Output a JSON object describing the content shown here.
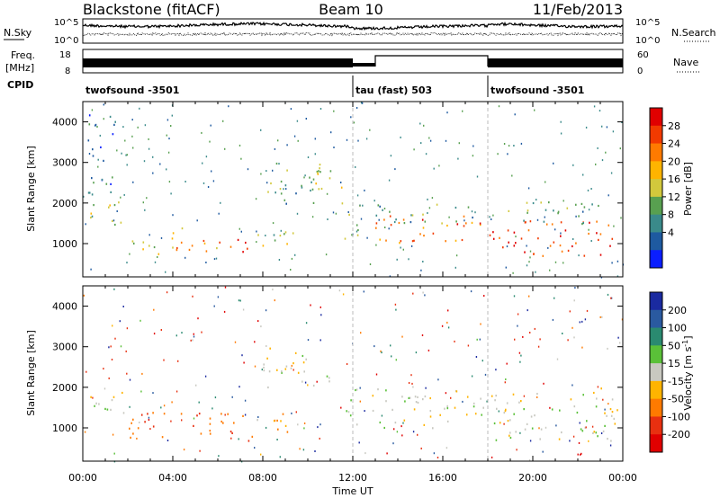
{
  "header": {
    "radar": "Blackstone (fitACF)",
    "beam": "Beam 10",
    "date": "11/Feb/2013"
  },
  "panels": {
    "nsky_label": "N.Sky",
    "nsearch_label": "N.Search",
    "freq_label_line1": "Freq.",
    "freq_label_line2": "[MHz]",
    "nave_label": "Nave",
    "cpid_label": "CPID",
    "noise_ticks_left": [
      "10^5",
      "10^0"
    ],
    "noise_ticks_right": [
      "10^5",
      "10^0"
    ],
    "freq_ticks": [
      "18",
      "8"
    ],
    "nave_ticks": [
      "60",
      "0"
    ],
    "cpid_segments": [
      {
        "label": "twofsound -3501",
        "start_hour": 0,
        "end_hour": 12
      },
      {
        "label": "tau (fast) 503",
        "start_hour": 12,
        "end_hour": 18
      },
      {
        "label": "twofsound -3501",
        "start_hour": 18,
        "end_hour": 24
      }
    ]
  },
  "power_colorbar": {
    "label": "Power [dB]",
    "ticks": [
      "28",
      "24",
      "20",
      "16",
      "12",
      "8",
      "4"
    ],
    "colors": [
      "#e00000",
      "#f23a00",
      "#ff7a00",
      "#ffb400",
      "#d2c83c",
      "#58a050",
      "#3a8a8a",
      "#1e5aa0",
      "#0a1eff"
    ]
  },
  "velocity_colorbar": {
    "label": "Velocity [m s-1]",
    "label_main": "Velocity [m s",
    "label_exp": "-1",
    "label_close": "]",
    "ticks": [
      "200",
      "100",
      "50",
      "15",
      "-15",
      "-50",
      "-100",
      "-200"
    ],
    "colors": [
      "#1a2aa0",
      "#2a5aa0",
      "#2a8a70",
      "#5ac038",
      "#c8c8c0",
      "#ffb400",
      "#ff7a00",
      "#e83010",
      "#e00000"
    ]
  },
  "axes": {
    "ylabel": "Slant Range [km]",
    "xlabel": "Time UT",
    "yticks": [
      "4000",
      "3000",
      "2000",
      "1000"
    ],
    "xticks": [
      "00:00",
      "04:00",
      "08:00",
      "12:00",
      "16:00",
      "20:00",
      "00:00"
    ]
  },
  "chart_data": [
    {
      "type": "heatmap",
      "title": "Power",
      "xlabel": "Time UT",
      "ylabel": "Slant Range [km]",
      "xlim_hours": [
        0,
        24
      ],
      "ylim": [
        180,
        4500
      ],
      "colorbar_label": "Power [dB]",
      "colorbar_ticks": [
        4,
        8,
        12,
        16,
        20,
        24,
        28
      ],
      "regions": [
        {
          "t0": 0.0,
          "t1": 1.8,
          "r0": 1350,
          "r1": 2100,
          "value": 14
        },
        {
          "t0": 0.2,
          "t1": 1.5,
          "r0": 2200,
          "r1": 4300,
          "value": 6
        },
        {
          "t0": 2.0,
          "t1": 4.0,
          "r0": 700,
          "r1": 1300,
          "value": 16
        },
        {
          "t0": 4.0,
          "t1": 6.0,
          "r0": 800,
          "r1": 1400,
          "value": 20
        },
        {
          "t0": 6.0,
          "t1": 7.5,
          "r0": 700,
          "r1": 1200,
          "value": 26
        },
        {
          "t0": 7.5,
          "t1": 9.5,
          "r0": 850,
          "r1": 1400,
          "value": 14
        },
        {
          "t0": 8.0,
          "t1": 11.0,
          "r0": 2000,
          "r1": 3000,
          "value": 10
        },
        {
          "t0": 10.0,
          "t1": 11.5,
          "r0": 2400,
          "r1": 3000,
          "value": 16
        },
        {
          "t0": 11.5,
          "t1": 12.3,
          "r0": 1000,
          "r1": 2100,
          "value": 16
        },
        {
          "t0": 12.8,
          "t1": 17.8,
          "r0": 1000,
          "r1": 1700,
          "value": 24
        },
        {
          "t0": 13.0,
          "t1": 17.5,
          "r0": 1500,
          "r1": 2000,
          "value": 10
        },
        {
          "t0": 18.0,
          "t1": 23.8,
          "r0": 700,
          "r1": 1600,
          "value": 26
        },
        {
          "t0": 18.5,
          "t1": 23.0,
          "r0": 1500,
          "r1": 2100,
          "value": 10
        }
      ]
    },
    {
      "type": "heatmap",
      "title": "Velocity",
      "xlabel": "Time UT",
      "ylabel": "Slant Range [km]",
      "xlim_hours": [
        0,
        24
      ],
      "ylim": [
        180,
        4500
      ],
      "colorbar_label": "Velocity [m s-1]",
      "colorbar_ticks": [
        -200,
        -100,
        -50,
        -15,
        15,
        50,
        100,
        200
      ],
      "regions": [
        {
          "t0": 0.0,
          "t1": 1.8,
          "r0": 1350,
          "r1": 2100,
          "value": 0
        },
        {
          "t0": 2.0,
          "t1": 7.5,
          "r0": 700,
          "r1": 1400,
          "value": -70
        },
        {
          "t0": 7.5,
          "t1": 9.5,
          "r0": 850,
          "r1": 1400,
          "value": -40
        },
        {
          "t0": 8.0,
          "t1": 11.0,
          "r0": 2000,
          "r1": 3000,
          "value": 0
        },
        {
          "t0": 11.5,
          "t1": 12.3,
          "r0": 1000,
          "r1": 2100,
          "value": 0
        },
        {
          "t0": 12.8,
          "t1": 17.8,
          "r0": 1000,
          "r1": 2000,
          "value": 0
        },
        {
          "t0": 18.0,
          "t1": 23.8,
          "r0": 700,
          "r1": 2000,
          "value": 0
        }
      ]
    }
  ]
}
